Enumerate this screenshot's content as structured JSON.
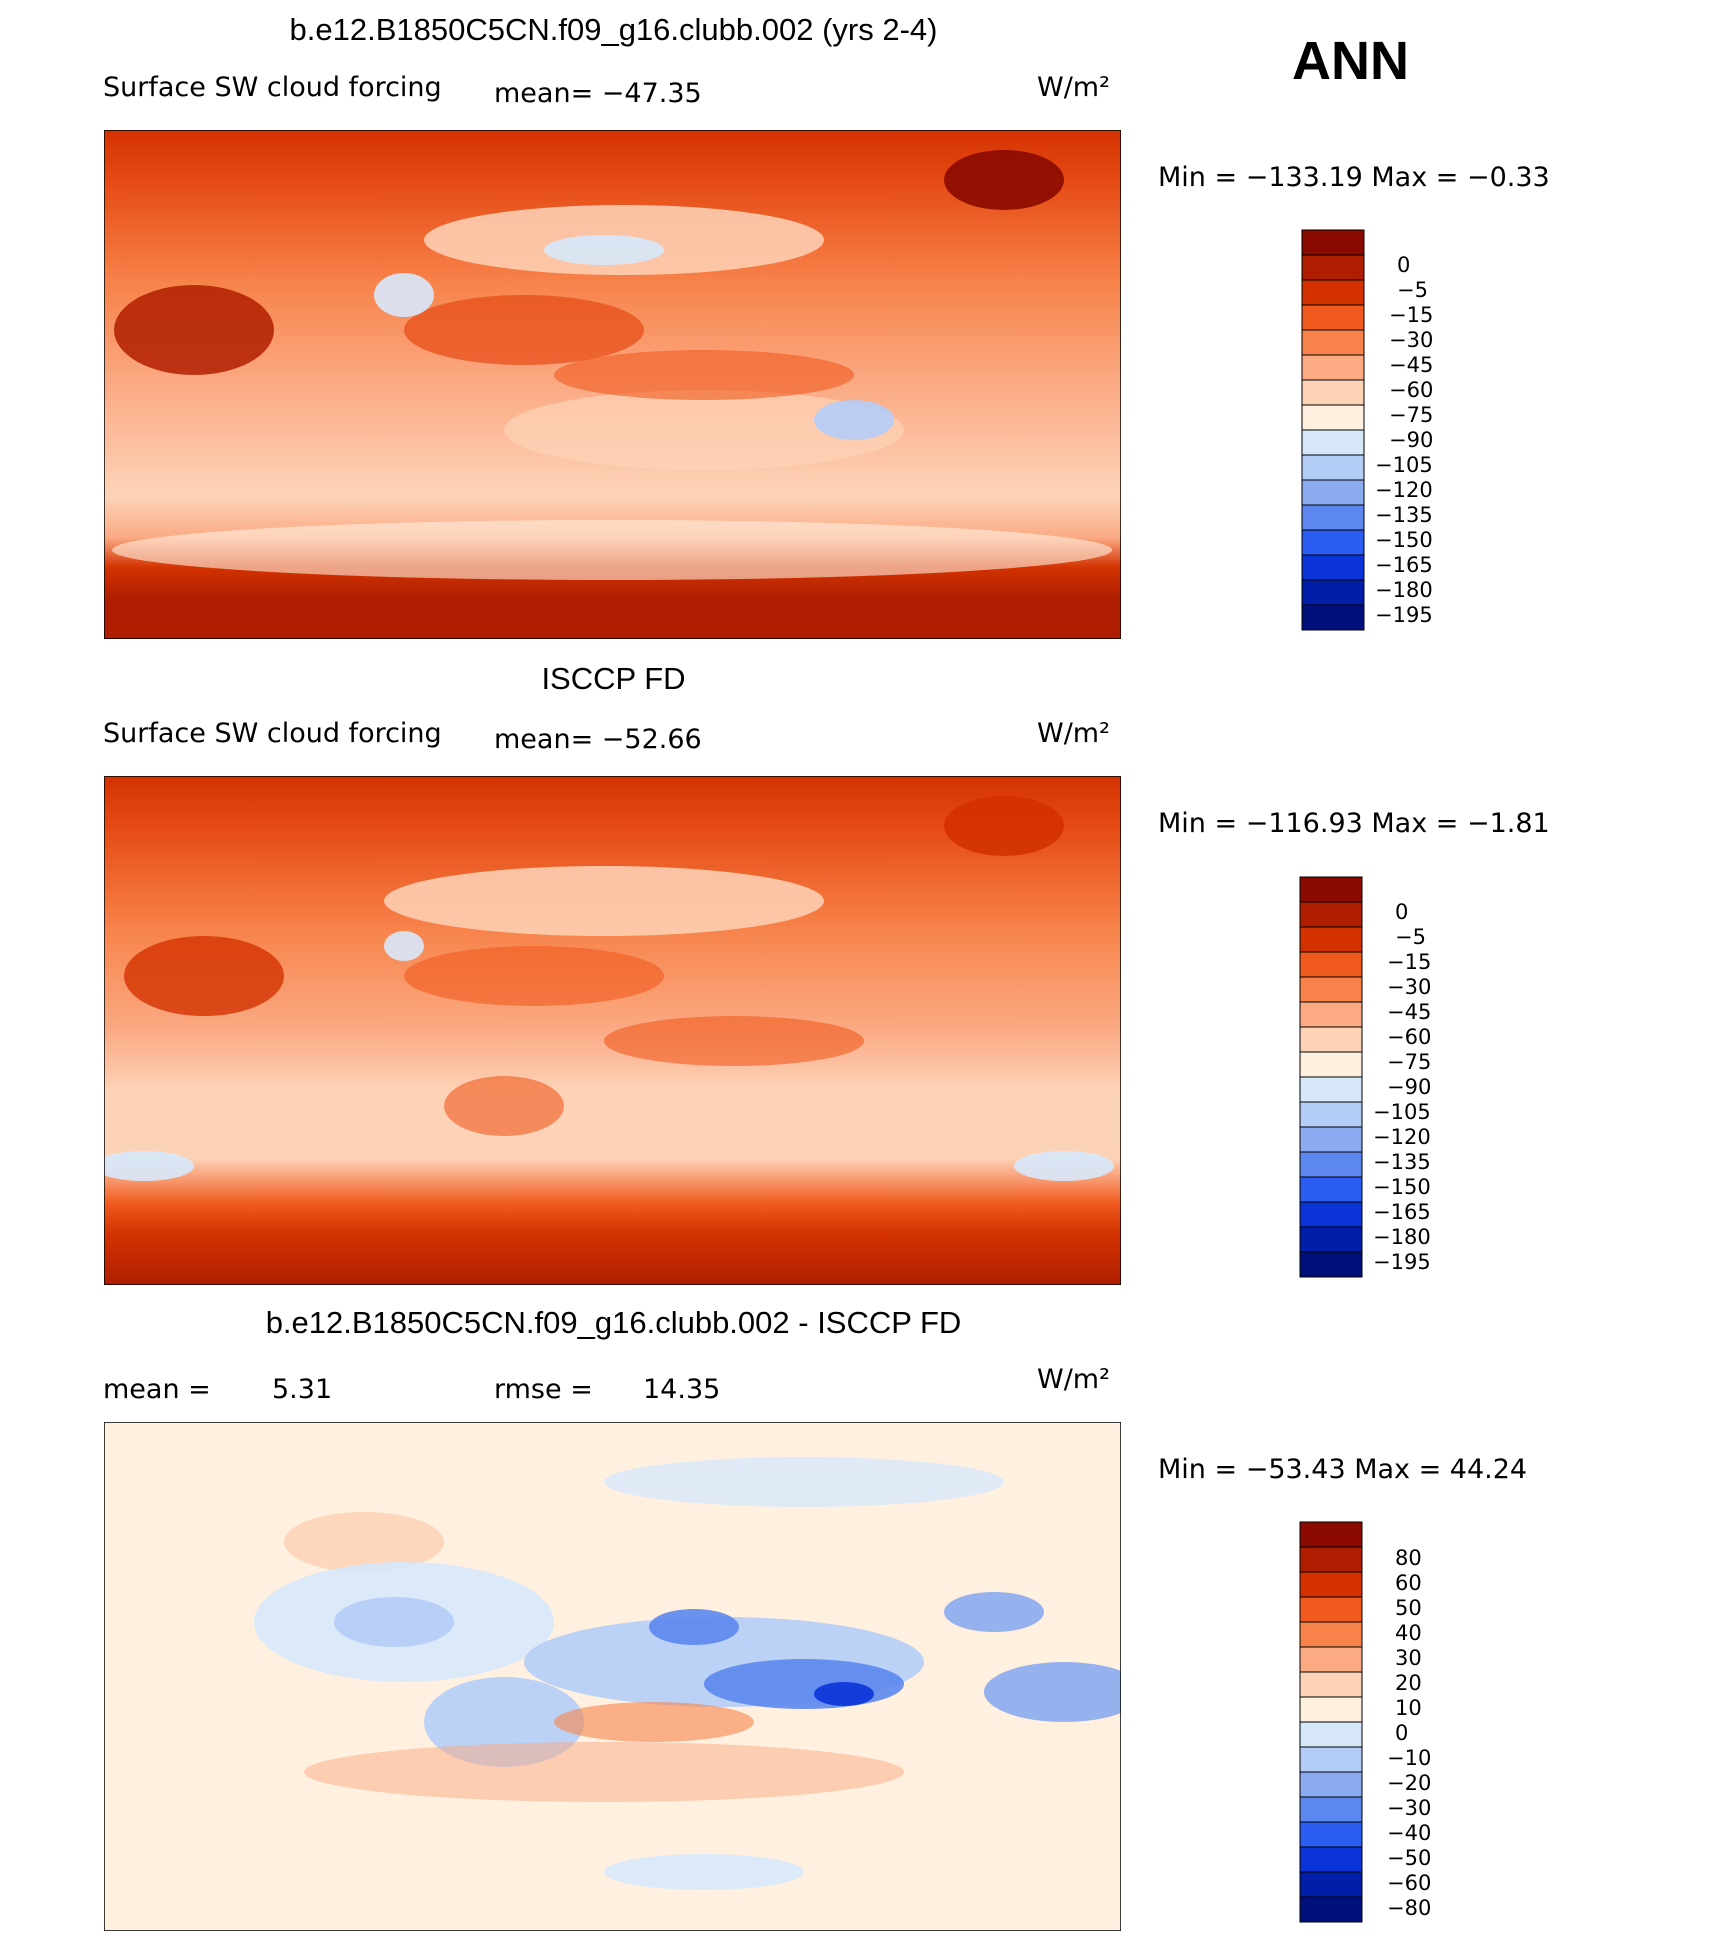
{
  "season": "ANN",
  "chart_data": [
    {
      "type": "heatmap",
      "title": "b.e12.B1850C5CN.f09_g16.clubb.002 (yrs 2-4)",
      "variable": "Surface SW cloud forcing",
      "mean_text": "mean=  −47.35",
      "units": "W/m²",
      "minmax_text": "Min  =  −133.19  Max  =    −0.33",
      "levels": [
        "0",
        "−5",
        "−15",
        "−30",
        "−45",
        "−60",
        "−75",
        "−90",
        "−105",
        "−120",
        "−135",
        "−150",
        "−165",
        "−180",
        "−195"
      ],
      "colors": [
        "#8a0a00",
        "#b01e00",
        "#d33200",
        "#f05a1e",
        "#f7834a",
        "#fbaa84",
        "#fdd3b8",
        "#fff0e0",
        "#d7e8fb",
        "#b4cdf7",
        "#8aabf0",
        "#5b87ee",
        "#2c5df2",
        "#0a33d8",
        "#001ea8",
        "#00107a"
      ]
    },
    {
      "type": "heatmap",
      "title": "ISCCP FD",
      "variable": "Surface SW cloud forcing",
      "mean_text": "mean=  −52.66",
      "units": "W/m²",
      "minmax_text": "Min  =  −116.93  Max  =    −1.81",
      "levels": [
        "0",
        "−5",
        "−15",
        "−30",
        "−45",
        "−60",
        "−75",
        "−90",
        "−105",
        "−120",
        "−135",
        "−150",
        "−165",
        "−180",
        "−195"
      ],
      "colors": [
        "#8a0a00",
        "#b01e00",
        "#d33200",
        "#f05a1e",
        "#f7834a",
        "#fbaa84",
        "#fdd3b8",
        "#fff0e0",
        "#d7e8fb",
        "#b4cdf7",
        "#8aabf0",
        "#5b87ee",
        "#2c5df2",
        "#0a33d8",
        "#001ea8",
        "#00107a"
      ]
    },
    {
      "type": "heatmap",
      "title": "b.e12.B1850C5CN.f09_g16.clubb.002 - ISCCP FD",
      "mean_label": "mean  =",
      "mean_value": "5.31",
      "rmse_label": "rmse  =",
      "rmse_value": "14.35",
      "units": "W/m²",
      "minmax_text": "Min  =  −53.43  Max  =    44.24",
      "levels": [
        "80",
        "60",
        "50",
        "40",
        "30",
        "20",
        "10",
        "0",
        "−10",
        "−20",
        "−30",
        "−40",
        "−50",
        "−60",
        "−80"
      ],
      "colors": [
        "#8a0a00",
        "#b01e00",
        "#d33200",
        "#f05a1e",
        "#f7834a",
        "#fbaa84",
        "#fdd3b8",
        "#fff0e0",
        "#d7e8fb",
        "#b4cdf7",
        "#8aabf0",
        "#5b87ee",
        "#2c5df2",
        "#0a33d8",
        "#001ea8",
        "#00107a"
      ]
    }
  ]
}
